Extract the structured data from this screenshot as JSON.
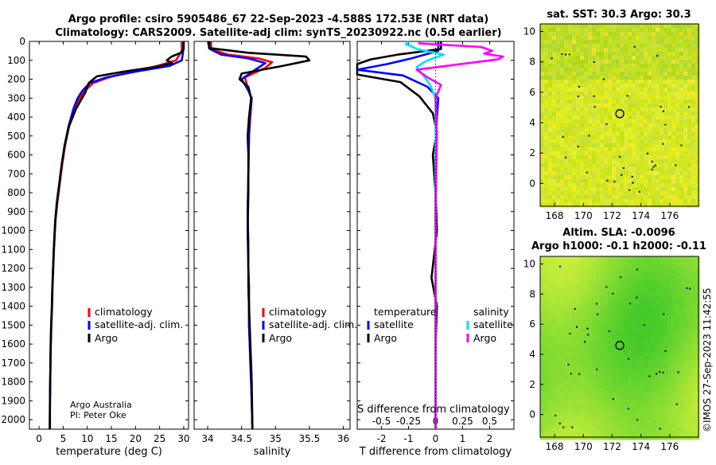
{
  "title_line1": "Argo profile: csiro 5905486_67 22-Sep-2023 -4.588S 172.53E (NRT data)",
  "title_line2": "Climatology: CARS2009. Satellite-adj clim: synTS_20230922.nc (0.5d earlier)",
  "credit": "©IMOS 27-Sep-2023 11:42:55",
  "colors": {
    "climatology": "#ff0000",
    "satellite": "#0000ff",
    "argo": "#000000",
    "t_sat": "#0000ff",
    "s_sat": "#00e0ff",
    "s_argo": "#ff00ff"
  },
  "chart_data": [
    {
      "id": "temperature",
      "type": "line",
      "xlabel": "temperature (deg C)",
      "xlim": [
        -2,
        31
      ],
      "xticks": [
        0,
        5,
        10,
        15,
        20,
        25,
        30
      ],
      "ylim": [
        2050,
        0
      ],
      "yticks": [
        0,
        100,
        200,
        300,
        400,
        500,
        600,
        700,
        800,
        900,
        1000,
        1100,
        1200,
        1300,
        1400,
        1500,
        1600,
        1700,
        1800,
        1900,
        2000
      ],
      "legend": [
        "climatology",
        "satellite-adj. clim.",
        "Argo"
      ],
      "footnote": [
        "Argo Australia",
        "PI: Peter Oke"
      ],
      "series": [
        {
          "name": "climatology",
          "color": "#ff0000",
          "x": [
            29.6,
            29.6,
            28.4,
            24.5,
            19,
            14.5,
            11.2,
            9.5,
            8.4,
            7.5,
            6.2,
            5.4,
            4.8,
            4.3,
            3.8,
            3.4,
            3.1,
            2.95,
            2.8,
            2.7,
            2.55,
            2.45,
            2.35,
            2.3,
            2.25,
            2.2
          ],
          "y": [
            0,
            50,
            100,
            130,
            160,
            190,
            220,
            260,
            300,
            350,
            450,
            550,
            650,
            750,
            850,
            950,
            1100,
            1200,
            1300,
            1400,
            1500,
            1600,
            1700,
            1800,
            1900,
            2050
          ]
        },
        {
          "name": "satellite-adj. clim.",
          "color": "#0000ff",
          "x": [
            29.9,
            29.9,
            29.6,
            27,
            20,
            14,
            10.5,
            9,
            8,
            7.2,
            6.1,
            5.3,
            4.7,
            4.2,
            3.7,
            3.35,
            3.05,
            2.9,
            2.75,
            2.65,
            2.5,
            2.4,
            2.35,
            2.3,
            2.25,
            2.2
          ],
          "y": [
            0,
            50,
            100,
            130,
            160,
            190,
            220,
            260,
            300,
            350,
            450,
            550,
            650,
            750,
            850,
            950,
            1100,
            1200,
            1300,
            1400,
            1500,
            1600,
            1700,
            1800,
            1900,
            2050
          ]
        },
        {
          "name": "Argo",
          "color": "#000000",
          "x": [
            30,
            30,
            29.4,
            27.5,
            26.5,
            27.6,
            24,
            17.5,
            12,
            10.3,
            9.6,
            8.7,
            7.6,
            6.2,
            5.3,
            4.7,
            4.2,
            3.7,
            3.35,
            3.05,
            2.9,
            2.75,
            2.65,
            2.5,
            2.4,
            2.35,
            2.3,
            2.25,
            2.25
          ],
          "y": [
            0,
            40,
            60,
            80,
            100,
            115,
            135,
            160,
            185,
            220,
            270,
            310,
            360,
            450,
            550,
            650,
            750,
            850,
            950,
            1100,
            1200,
            1300,
            1400,
            1500,
            1600,
            1700,
            1800,
            1900,
            2050
          ]
        }
      ]
    },
    {
      "id": "salinity",
      "type": "line",
      "xlabel": "salinity",
      "xlim": [
        33.8,
        36.1
      ],
      "xticks": [
        34,
        34.5,
        35,
        35.5,
        36
      ],
      "ylim": [
        2050,
        0
      ],
      "legend": [
        "climatology",
        "satellite-adj. clim.",
        "Argo"
      ],
      "series": [
        {
          "name": "climatology",
          "color": "#ff0000",
          "x": [
            34.05,
            34.05,
            34.3,
            34.75,
            34.95,
            34.85,
            34.55,
            34.6,
            34.65,
            34.63,
            34.61,
            34.6,
            34.59,
            34.6,
            34.6,
            34.61,
            34.61,
            34.62,
            34.63,
            34.64,
            34.65,
            34.66
          ],
          "y": [
            0,
            40,
            70,
            90,
            110,
            140,
            190,
            260,
            300,
            400,
            500,
            700,
            900,
            1100,
            1300,
            1400,
            1500,
            1600,
            1700,
            1800,
            1900,
            2050
          ]
        },
        {
          "name": "satellite-adj. clim.",
          "color": "#0000ff",
          "x": [
            34.03,
            34.03,
            34.2,
            34.6,
            34.85,
            34.7,
            34.5,
            34.6,
            34.65,
            34.62,
            34.61,
            34.6,
            34.59,
            34.6,
            34.6,
            34.61,
            34.61,
            34.62,
            34.63,
            34.64,
            34.65,
            34.66
          ],
          "y": [
            0,
            40,
            70,
            90,
            115,
            150,
            200,
            260,
            300,
            400,
            500,
            700,
            900,
            1100,
            1300,
            1400,
            1500,
            1600,
            1700,
            1800,
            1900,
            2050
          ]
        },
        {
          "name": "Argo",
          "color": "#000000",
          "x": [
            34.02,
            34.02,
            34.6,
            35.45,
            35.5,
            35.1,
            34.5,
            34.47,
            34.6,
            34.64,
            34.61,
            34.59,
            34.6,
            34.6,
            34.59,
            34.6,
            34.61,
            34.61,
            34.62,
            34.63,
            34.64,
            34.65,
            34.66
          ],
          "y": [
            0,
            35,
            60,
            80,
            100,
            130,
            170,
            200,
            240,
            300,
            400,
            500,
            600,
            800,
            1000,
            1200,
            1300,
            1400,
            1500,
            1600,
            1700,
            1800,
            2050
          ]
        }
      ]
    },
    {
      "id": "difference",
      "type": "line",
      "xlabel": "T difference from climatology",
      "xlabel_top": "S difference from climatology",
      "xlim": [
        -2.9,
        2.9
      ],
      "xticks": [
        -2,
        -1,
        0,
        1,
        2
      ],
      "xticks_top": [
        "-0.5",
        "-0.25",
        "0",
        "0.25",
        "0.5"
      ],
      "xticks_top_pos": [
        -2,
        -1,
        0,
        1,
        2
      ],
      "ylim": [
        2050,
        0
      ],
      "legend_headers": [
        "temperature",
        "salinity"
      ],
      "legend_t": [
        "satellite",
        "Argo"
      ],
      "legend_s": [
        "satellite",
        "Argo"
      ],
      "series": [
        {
          "name": "T satellite",
          "color": "#0000ff",
          "x": [
            0.1,
            0.1,
            -0.9,
            -1.8,
            -2.9,
            -1.2,
            -0.3,
            0.1,
            0.05,
            0,
            0,
            0,
            0,
            0,
            0
          ],
          "y": [
            0,
            50,
            90,
            120,
            150,
            180,
            240,
            300,
            400,
            600,
            900,
            1200,
            1500,
            1800,
            2050
          ]
        },
        {
          "name": "T Argo",
          "color": "#000000",
          "x": [
            0.2,
            0.2,
            -1.4,
            -2.4,
            -2.9,
            -2.9,
            -1.3,
            -0.6,
            -0.1,
            0.05,
            -0.1,
            0,
            0.05,
            -0.15,
            0.05,
            0,
            0,
            0
          ],
          "y": [
            0,
            40,
            70,
            95,
            120,
            175,
            215,
            290,
            380,
            480,
            600,
            800,
            1000,
            1250,
            1400,
            1600,
            1800,
            2050
          ]
        },
        {
          "name": "S satellite",
          "color": "#00e0ff",
          "x": [
            -1,
            -1.1,
            -0.9,
            -0.7,
            0.3,
            -0.3,
            -0.7,
            -0.5,
            -0.2,
            0,
            0,
            0,
            0,
            0
          ],
          "y": [
            0,
            15,
            25,
            40,
            70,
            100,
            135,
            170,
            230,
            300,
            500,
            900,
            1500,
            2050
          ]
        },
        {
          "name": "S Argo",
          "color": "#ff00ff",
          "x": [
            -0.6,
            -0.6,
            1.7,
            2.1,
            1.8,
            2.5,
            2.3,
            1.2,
            -0.7,
            -0.3,
            0.2,
            0,
            0.05,
            0,
            0,
            0
          ],
          "y": [
            0,
            10,
            30,
            50,
            65,
            80,
            95,
            115,
            150,
            190,
            230,
            300,
            500,
            900,
            1500,
            2050
          ]
        }
      ]
    },
    {
      "id": "sst_map",
      "type": "heatmap",
      "title": "sat. SST: 30.3 Argo: 30.3",
      "xlim": [
        167,
        178
      ],
      "ylim": [
        -1.5,
        10.5
      ],
      "xticks": [
        168,
        170,
        172,
        174,
        176
      ],
      "yticks": [
        0,
        2,
        4,
        6,
        8,
        10
      ],
      "marker": {
        "lon": 172.53,
        "lat": 4.588
      }
    },
    {
      "id": "sla_map",
      "type": "heatmap",
      "title_line1": "Altim. SLA: -0.0096",
      "title_line2": "Argo h1000: -0.1 h2000: -0.11",
      "xlim": [
        167,
        178
      ],
      "ylim": [
        -1.5,
        10.5
      ],
      "xticks": [
        168,
        170,
        172,
        174,
        176
      ],
      "yticks": [
        0,
        2,
        4,
        6,
        8,
        10
      ],
      "marker": {
        "lon": 172.53,
        "lat": 4.588
      }
    }
  ]
}
